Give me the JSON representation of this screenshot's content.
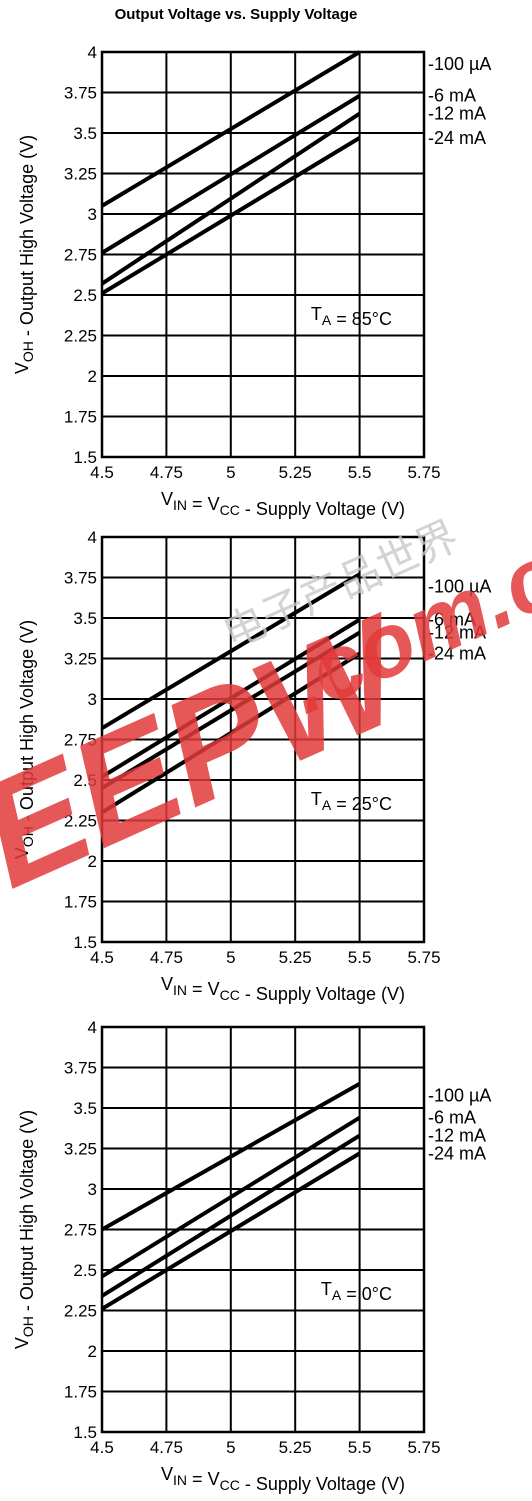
{
  "title": "Output Voltage vs. Supply Voltage",
  "colors": {
    "line": "#000000",
    "grid": "#000000",
    "watermark": "#e23a3a"
  },
  "chart_data": [
    {
      "type": "line",
      "condition_label": "T_A = 85°C",
      "xlabel": "V_IN = V_CC - Supply Voltage (V)",
      "ylabel": "V_OH - Output High Voltage (V)",
      "xlim": [
        4.5,
        5.75
      ],
      "ylim": [
        1.5,
        4
      ],
      "xticks": [
        "4.5",
        "4.75",
        "5",
        "5.25",
        "5.5",
        "5.75"
      ],
      "yticks": [
        "4",
        "3.75",
        "3.5",
        "3.25",
        "3",
        "2.75",
        "2.5",
        "2.25",
        "2",
        "1.75",
        "1.5"
      ],
      "grid": true,
      "series": [
        {
          "name": "-100 µA",
          "x": [
            4.5,
            5.5
          ],
          "y": [
            3.05,
            4.0
          ]
        },
        {
          "name": "-6 mA",
          "x": [
            4.5,
            5.5
          ],
          "y": [
            2.76,
            3.73
          ]
        },
        {
          "name": "-12 mA",
          "x": [
            4.5,
            5.5
          ],
          "y": [
            2.57,
            3.62
          ]
        },
        {
          "name": "-24 mA",
          "x": [
            4.5,
            5.5
          ],
          "y": [
            2.51,
            3.47
          ]
        }
      ]
    },
    {
      "type": "line",
      "condition_label": "T_A = 25°C",
      "xlabel": "V_IN = V_CC - Supply Voltage (V)",
      "ylabel": "V_OH - Output High Voltage (V)",
      "xlim": [
        4.5,
        5.75
      ],
      "ylim": [
        1.5,
        4
      ],
      "xticks": [
        "4.5",
        "4.75",
        "5",
        "5.25",
        "5.5",
        "5.75"
      ],
      "yticks": [
        "4",
        "3.75",
        "3.5",
        "3.25",
        "3",
        "2.75",
        "2.5",
        "2.25",
        "2",
        "1.75",
        "1.5"
      ],
      "grid": true,
      "series": [
        {
          "name": "-100 µA",
          "x": [
            4.5,
            5.5
          ],
          "y": [
            2.82,
            3.77
          ]
        },
        {
          "name": "-6 mA",
          "x": [
            4.5,
            5.5
          ],
          "y": [
            2.52,
            3.49
          ]
        },
        {
          "name": "-12 mA",
          "x": [
            4.5,
            5.5
          ],
          "y": [
            2.45,
            3.41
          ]
        },
        {
          "name": "-24 mA",
          "x": [
            4.5,
            5.5
          ],
          "y": [
            2.3,
            3.28
          ]
        }
      ]
    },
    {
      "type": "line",
      "condition_label": "T_A = 0°C",
      "xlabel": "V_IN = V_CC - Supply Voltage (V)",
      "ylabel": "V_OH - Output High Voltage (V)",
      "xlim": [
        4.5,
        5.75
      ],
      "ylim": [
        1.5,
        4
      ],
      "xticks": [
        "4.5",
        "4.75",
        "5",
        "5.25",
        "5.5",
        "5.75"
      ],
      "yticks": [
        "4",
        "3.75",
        "3.5",
        "3.25",
        "3",
        "2.75",
        "2.5",
        "2.25",
        "2",
        "1.75",
        "1.5"
      ],
      "grid": true,
      "series": [
        {
          "name": "-100 µA",
          "x": [
            4.5,
            5.5
          ],
          "y": [
            2.75,
            3.65
          ]
        },
        {
          "name": "-6 mA",
          "x": [
            4.5,
            5.5
          ],
          "y": [
            2.46,
            3.44
          ]
        },
        {
          "name": "-12 mA",
          "x": [
            4.5,
            5.5
          ],
          "y": [
            2.34,
            3.33
          ]
        },
        {
          "name": "-24 mA",
          "x": [
            4.5,
            5.5
          ],
          "y": [
            2.26,
            3.22
          ]
        }
      ]
    }
  ],
  "watermark": {
    "text": "EEPW",
    "domain": ".com.cn",
    "chinese": "电子产品世界"
  }
}
